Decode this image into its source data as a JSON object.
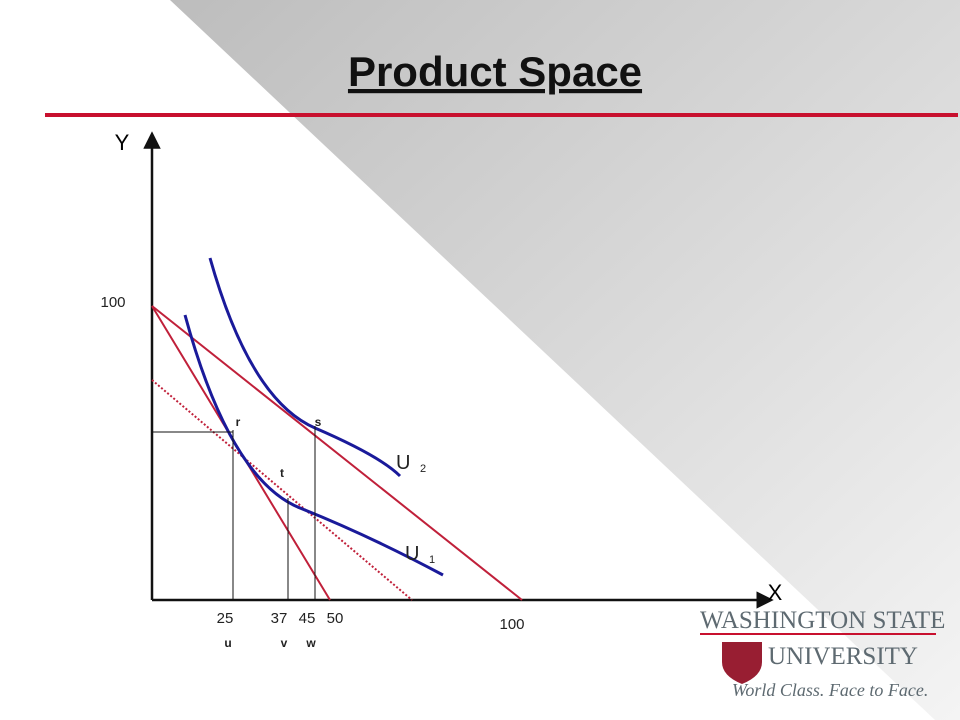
{
  "header": {
    "title": "Product Space"
  },
  "axes": {
    "y_label": "Y",
    "x_label": "X",
    "y_intercept": "100",
    "x_intercept": "100"
  },
  "points": {
    "r": "r",
    "s": "s",
    "t": "t"
  },
  "curves": {
    "u2": "U",
    "u2_sub": "2",
    "u1": "U",
    "u1_sub": "1"
  },
  "x_values": [
    "25",
    "37",
    "45",
    "50"
  ],
  "x_points": [
    "u",
    "v",
    "w"
  ],
  "logo": {
    "line1": "WASHINGTON STATE",
    "line2": "UNIVERSITY",
    "slogan": "World Class. Face to Face."
  }
}
